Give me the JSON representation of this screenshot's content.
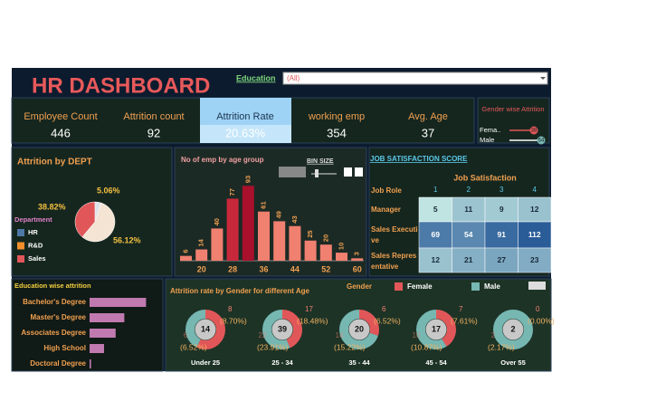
{
  "header": {
    "title": "HR DASHBOARD",
    "filter_label": "Education",
    "filter_value": "(All)"
  },
  "kpis": [
    {
      "label": "Employee Count",
      "value": 446
    },
    {
      "label": "Attrition count",
      "value": 92
    },
    {
      "label": "Attrition Rate",
      "value": "20.63%"
    },
    {
      "label": "working emp",
      "value": 354
    },
    {
      "label": "Avg. Age",
      "value": 37
    }
  ],
  "gender_filter": {
    "title": "Gender wise Attrition",
    "items": [
      {
        "label": "Fema..",
        "value": 38
      },
      {
        "label": "Male",
        "value": 54
      }
    ]
  },
  "chart_data": [
    {
      "type": "pie",
      "title": "Attrition by DEPT",
      "legend_title": "Department",
      "categories": [
        "HR",
        "R&D",
        "Sales"
      ],
      "values": [
        5.06,
        38.82,
        56.12
      ],
      "value_labels": [
        "5.06%",
        "38.82%",
        "56.12%"
      ],
      "colors": [
        "#dde3ea",
        "#e15759",
        "#f4e4d4"
      ],
      "legend_colors": [
        "#4e79a7",
        "#f28e2b",
        "#e15759"
      ]
    },
    {
      "type": "bar",
      "title": "No of emp by age group",
      "control_label": "BIN SIZE",
      "categories": [
        null,
        "20",
        null,
        "28",
        null,
        "36",
        null,
        "44",
        null,
        "52",
        null,
        "60"
      ],
      "values": [
        6,
        14,
        40,
        77,
        93,
        61,
        49,
        43,
        25,
        20,
        10,
        3
      ],
      "colors": [
        "#f08070",
        "#f08070",
        "#f08070",
        "#c8283c",
        "#a8102c",
        "#f08070",
        "#f08070",
        "#f08070",
        "#f08070",
        "#f08070",
        "#f08070",
        "#f08070"
      ],
      "ylim": [
        0,
        100
      ]
    },
    {
      "type": "heatmap",
      "title": "JOB SATISFACTION SCORE",
      "x_label": "Job Satisfaction",
      "y_label": "Job Role",
      "x_categories": [
        "1",
        "2",
        "3",
        "4"
      ],
      "y_categories": [
        "Manager",
        "Sales Executive",
        "Sales Representative"
      ],
      "values": [
        [
          5,
          11,
          9,
          12
        ],
        [
          69,
          54,
          91,
          112
        ],
        [
          12,
          21,
          27,
          23
        ]
      ]
    },
    {
      "type": "hbar",
      "title": "Education wise attrition",
      "categories": [
        "Bachelor's Degree",
        "Master's Degree",
        "Associates Degree",
        "High School",
        "Doctoral Degree"
      ],
      "values": [
        39,
        24,
        18,
        10,
        1
      ],
      "color": "#c07ab0",
      "xlim": [
        0,
        45
      ]
    },
    {
      "type": "donut",
      "title": "Attrition rate by Gender for different Age",
      "legend_title": "Gender",
      "categories": [
        "Under 25",
        "25 - 34",
        "35 - 44",
        "45 - 54",
        "Over 55"
      ],
      "totals": [
        14,
        39,
        20,
        17,
        2
      ],
      "series": [
        {
          "name": "Female",
          "color": "#e15759",
          "values": [
            8,
            17,
            6,
            7,
            0
          ],
          "percents": [
            8.7,
            18.48,
            6.52,
            7.61,
            0.0
          ],
          "percent_labels": [
            "(8.70%)",
            "(18.48%)",
            "(6.52%)",
            "(7.61%)",
            "(0.00%)"
          ]
        },
        {
          "name": "Male",
          "color": "#76b7b2",
          "values": [
            6,
            22,
            14,
            10,
            2
          ],
          "percents": [
            6.52,
            23.91,
            15.22,
            10.87,
            2.17
          ],
          "percent_labels": [
            "(6.52%)",
            "(23.91%)",
            "(15.22%)",
            "(10.87%)",
            "(2.17%)"
          ]
        }
      ]
    }
  ]
}
